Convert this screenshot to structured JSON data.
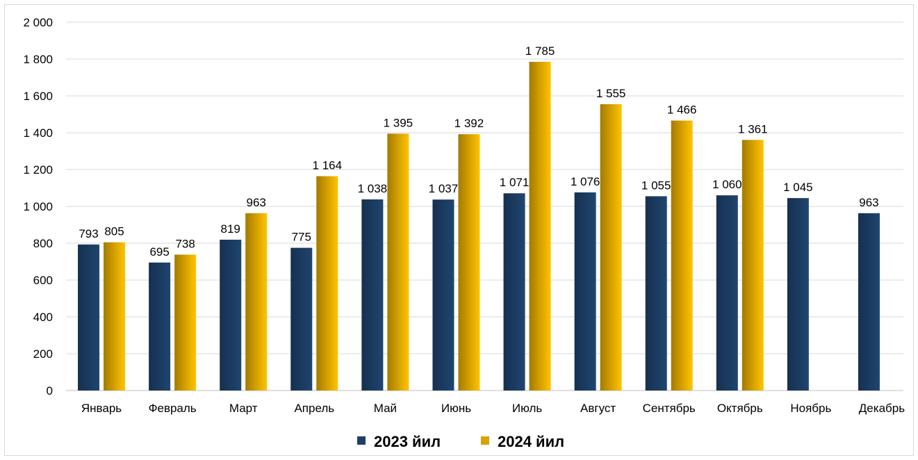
{
  "chart_data": {
    "type": "bar",
    "categories": [
      "Январь",
      "Февраль",
      "Март",
      "Апрель",
      "Май",
      "Июнь",
      "Июль",
      "Август",
      "Сентябрь",
      "Октябрь",
      "Ноябрь",
      "Декабрь"
    ],
    "series": [
      {
        "name": "2023 йил",
        "values": [
          793,
          695,
          819,
          775,
          1038,
          1037,
          1071,
          1076,
          1055,
          1060,
          1045,
          963
        ],
        "labels": [
          "793",
          "695",
          "819",
          "775",
          "1 038",
          "1 037",
          "1 071",
          "1 076",
          "1 055",
          "1 060",
          "1 045",
          "963"
        ],
        "color": "#1f3f66"
      },
      {
        "name": "2024 йил",
        "values": [
          805,
          738,
          963,
          1164,
          1395,
          1392,
          1785,
          1555,
          1466,
          1361,
          null,
          null
        ],
        "labels": [
          "805",
          "738",
          "963",
          "1 164",
          "1 395",
          "1 392",
          "1 785",
          "1 555",
          "1 466",
          "1 361",
          "",
          ""
        ],
        "color": "#d9a300"
      }
    ],
    "y_ticks": [
      0,
      200,
      400,
      600,
      800,
      1000,
      1200,
      1400,
      1600,
      1800,
      2000
    ],
    "y_tick_labels": [
      "0",
      "200",
      "400",
      "600",
      "800",
      "1 000",
      "1 200",
      "1 400",
      "1 600",
      "1 800",
      "2 000"
    ],
    "ylim": [
      0,
      2000
    ],
    "title": "",
    "xlabel": "",
    "ylabel": "",
    "grid": true,
    "legend_position": "bottom"
  }
}
